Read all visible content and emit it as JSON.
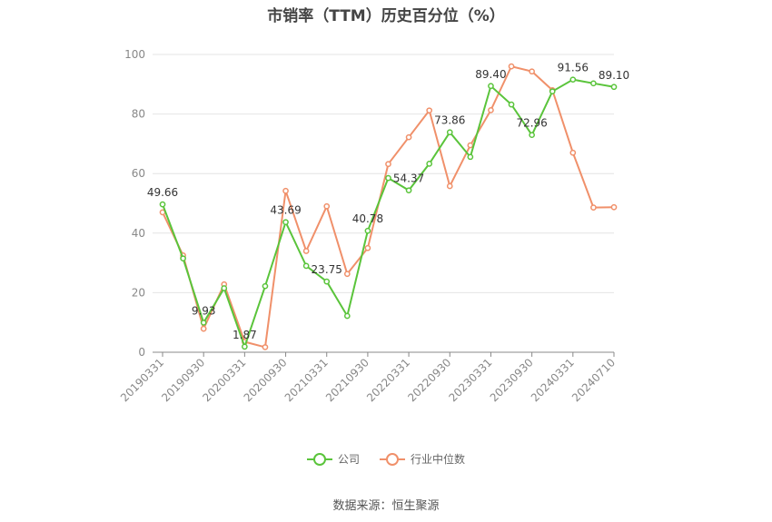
{
  "chart_data": {
    "type": "line",
    "title": "市销率（TTM）历史百分位（%）",
    "ylim": [
      0,
      100
    ],
    "yticks": [
      0,
      20,
      40,
      60,
      80,
      100
    ],
    "xtick_labels": [
      "20190331",
      "20190930",
      "20200331",
      "20200930",
      "20210331",
      "20210930",
      "20220331",
      "20220930",
      "20230331",
      "20230930",
      "20240331",
      "20240710"
    ],
    "grid": true,
    "legend_position": "bottom",
    "series": [
      {
        "name": "公司",
        "color": "#5ac43b",
        "values": [
          49.66,
          31.5,
          9.93,
          21.5,
          1.87,
          22.2,
          43.69,
          29.0,
          23.75,
          12.2,
          40.78,
          58.5,
          54.37,
          63.3,
          73.86,
          65.6,
          89.4,
          83.2,
          72.96,
          87.6,
          91.56,
          90.3,
          89.1
        ],
        "labels": {
          "0": "49.66",
          "2": "9.93",
          "4": "1.87",
          "6": "43.69",
          "8": "23.75",
          "10": "40.78",
          "12": "54.37",
          "14": "73.86",
          "16": "89.40",
          "18": "72.96",
          "20": "91.56",
          "22": "89.10"
        }
      },
      {
        "name": "行业中位数",
        "color": "#f0906a",
        "values": [
          47.0,
          32.5,
          7.9,
          22.8,
          3.5,
          1.7,
          54.2,
          34.0,
          49.0,
          26.3,
          35.0,
          63.2,
          72.2,
          81.2,
          55.8,
          69.5,
          81.3,
          96.0,
          94.3,
          88.0,
          67.0,
          48.6,
          48.7
        ]
      }
    ]
  },
  "legend": {
    "company_label": "公司",
    "industry_label": "行业中位数"
  },
  "source": "数据来源：恒生聚源"
}
